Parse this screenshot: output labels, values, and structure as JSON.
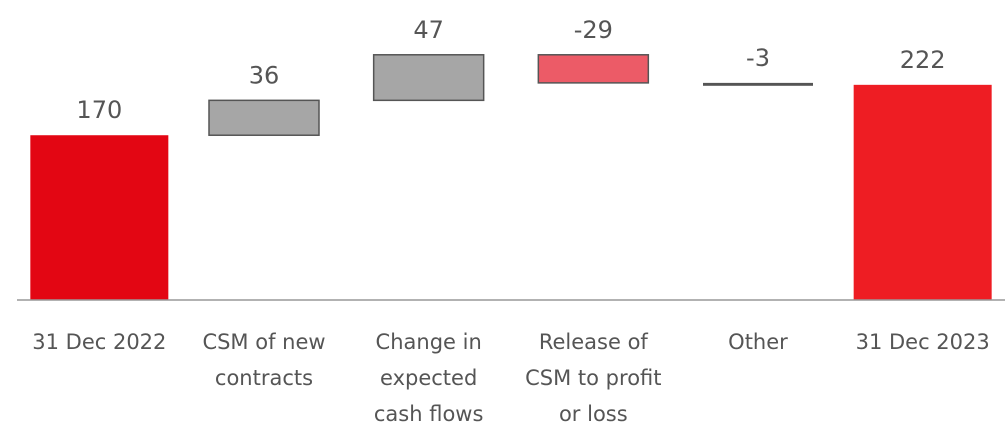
{
  "chart_data": {
    "type": "waterfall",
    "categories": [
      [
        "31 Dec 2022"
      ],
      [
        "CSM of new",
        "contracts"
      ],
      [
        "Change in",
        "expected",
        "cash flows"
      ],
      [
        "Release of",
        "CSM to profit",
        "or loss"
      ],
      [
        "Other"
      ],
      [
        "31 Dec 2023"
      ]
    ],
    "values": [
      170,
      36,
      47,
      -29,
      -3,
      222
    ],
    "measure": [
      "absolute",
      "relative",
      "relative",
      "relative",
      "relative",
      "total"
    ],
    "colors": [
      "#e30613",
      "#a6a6a6",
      "#a6a6a6",
      "#ec5b67",
      "#555555",
      "#ee1d23"
    ],
    "ylim": [
      0,
      260
    ]
  }
}
